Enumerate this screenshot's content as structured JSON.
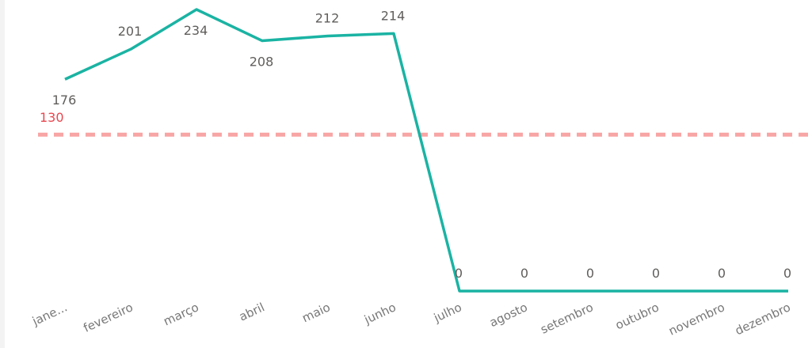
{
  "chart_data": {
    "type": "line",
    "categories": [
      "jane...",
      "fevereiro",
      "março",
      "abril",
      "maio",
      "junho",
      "julho",
      "agosto",
      "setembro",
      "outubro",
      "novembro",
      "dezembro"
    ],
    "values": [
      176,
      201,
      234,
      208,
      212,
      214,
      0,
      0,
      0,
      0,
      0,
      0
    ],
    "color": "#1ab3a3",
    "ylim": [
      0,
      234
    ],
    "reference_line": {
      "value": 130,
      "color": "#f8a5a5",
      "label_color": "#e8484f"
    }
  }
}
